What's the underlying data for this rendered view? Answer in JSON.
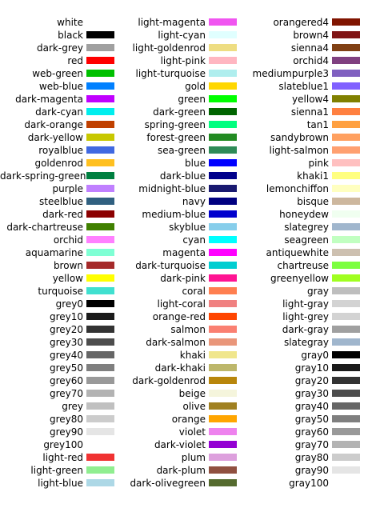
{
  "columns": [
    {
      "items": [
        {
          "name": "white",
          "color": "#ffffff"
        },
        {
          "name": "black",
          "color": "#000000"
        },
        {
          "name": "dark-grey",
          "color": "#a0a0a0"
        },
        {
          "name": "red",
          "color": "#ff0000"
        },
        {
          "name": "web-green",
          "color": "#00c000"
        },
        {
          "name": "web-blue",
          "color": "#0080ff"
        },
        {
          "name": "dark-magenta",
          "color": "#c000ff"
        },
        {
          "name": "dark-cyan",
          "color": "#00eeee"
        },
        {
          "name": "dark-orange",
          "color": "#c04000"
        },
        {
          "name": "dark-yellow",
          "color": "#c8c800"
        },
        {
          "name": "royalblue",
          "color": "#4169e1"
        },
        {
          "name": "goldenrod",
          "color": "#ffc020"
        },
        {
          "name": "dark-spring-green",
          "color": "#008040"
        },
        {
          "name": "purple",
          "color": "#c080ff"
        },
        {
          "name": "steelblue",
          "color": "#306080"
        },
        {
          "name": "dark-red",
          "color": "#8b0000"
        },
        {
          "name": "dark-chartreuse",
          "color": "#408000"
        },
        {
          "name": "orchid",
          "color": "#ff80ff"
        },
        {
          "name": "aquamarine",
          "color": "#7fffd4"
        },
        {
          "name": "brown",
          "color": "#a52a2a"
        },
        {
          "name": "yellow",
          "color": "#ffff00"
        },
        {
          "name": "turquoise",
          "color": "#40e0d0"
        },
        {
          "name": "grey0",
          "color": "#000000"
        },
        {
          "name": "grey10",
          "color": "#1a1a1a"
        },
        {
          "name": "grey20",
          "color": "#333333"
        },
        {
          "name": "grey30",
          "color": "#4d4d4d"
        },
        {
          "name": "grey40",
          "color": "#666666"
        },
        {
          "name": "grey50",
          "color": "#7f7f7f"
        },
        {
          "name": "grey60",
          "color": "#999999"
        },
        {
          "name": "grey70",
          "color": "#b3b3b3"
        },
        {
          "name": "grey",
          "color": "#c0c0c0"
        },
        {
          "name": "grey80",
          "color": "#cccccc"
        },
        {
          "name": "grey90",
          "color": "#e5e5e5"
        },
        {
          "name": "grey100",
          "color": "#ffffff"
        },
        {
          "name": "light-red",
          "color": "#f03232"
        },
        {
          "name": "light-green",
          "color": "#90ee90"
        },
        {
          "name": "light-blue",
          "color": "#add8e6"
        }
      ]
    },
    {
      "items": [
        {
          "name": "light-magenta",
          "color": "#f055f0"
        },
        {
          "name": "light-cyan",
          "color": "#e0ffff"
        },
        {
          "name": "light-goldenrod",
          "color": "#eedd82"
        },
        {
          "name": "light-pink",
          "color": "#ffb6c1"
        },
        {
          "name": "light-turquoise",
          "color": "#afeeee"
        },
        {
          "name": "gold",
          "color": "#ffd700"
        },
        {
          "name": "green",
          "color": "#00ff00"
        },
        {
          "name": "dark-green",
          "color": "#006400"
        },
        {
          "name": "spring-green",
          "color": "#00ff7f"
        },
        {
          "name": "forest-green",
          "color": "#228b22"
        },
        {
          "name": "sea-green",
          "color": "#2e8b57"
        },
        {
          "name": "blue",
          "color": "#0000ff"
        },
        {
          "name": "dark-blue",
          "color": "#00008b"
        },
        {
          "name": "midnight-blue",
          "color": "#191970"
        },
        {
          "name": "navy",
          "color": "#000080"
        },
        {
          "name": "medium-blue",
          "color": "#0000cd"
        },
        {
          "name": "skyblue",
          "color": "#87ceeb"
        },
        {
          "name": "cyan",
          "color": "#00ffff"
        },
        {
          "name": "magenta",
          "color": "#ff00ff"
        },
        {
          "name": "dark-turquoise",
          "color": "#00ced1"
        },
        {
          "name": "dark-pink",
          "color": "#ff1493"
        },
        {
          "name": "coral",
          "color": "#ff7f50"
        },
        {
          "name": "light-coral",
          "color": "#f08080"
        },
        {
          "name": "orange-red",
          "color": "#ff4500"
        },
        {
          "name": "salmon",
          "color": "#fa8072"
        },
        {
          "name": "dark-salmon",
          "color": "#e9967a"
        },
        {
          "name": "khaki",
          "color": "#f0e68c"
        },
        {
          "name": "dark-khaki",
          "color": "#bdb76b"
        },
        {
          "name": "dark-goldenrod",
          "color": "#b8860b"
        },
        {
          "name": "beige",
          "color": "#f5f5dc"
        },
        {
          "name": "olive",
          "color": "#a08020"
        },
        {
          "name": "orange",
          "color": "#ffa500"
        },
        {
          "name": "violet",
          "color": "#ee82ee"
        },
        {
          "name": "dark-violet",
          "color": "#9400d3"
        },
        {
          "name": "plum",
          "color": "#dda0dd"
        },
        {
          "name": "dark-plum",
          "color": "#905040"
        },
        {
          "name": "dark-olivegreen",
          "color": "#556b2f"
        }
      ]
    },
    {
      "items": [
        {
          "name": "orangered4",
          "color": "#801400"
        },
        {
          "name": "brown4",
          "color": "#801414"
        },
        {
          "name": "sienna4",
          "color": "#804014"
        },
        {
          "name": "orchid4",
          "color": "#804080"
        },
        {
          "name": "mediumpurple3",
          "color": "#8060c0"
        },
        {
          "name": "slateblue1",
          "color": "#8060ff"
        },
        {
          "name": "yellow4",
          "color": "#808000"
        },
        {
          "name": "sienna1",
          "color": "#ff8040"
        },
        {
          "name": "tan1",
          "color": "#ffa040"
        },
        {
          "name": "sandybrown",
          "color": "#ffa060"
        },
        {
          "name": "light-salmon",
          "color": "#ffa070"
        },
        {
          "name": "pink",
          "color": "#ffc0c0"
        },
        {
          "name": "khaki1",
          "color": "#ffff80"
        },
        {
          "name": "lemonchiffon",
          "color": "#ffffc0"
        },
        {
          "name": "bisque",
          "color": "#cdb79e"
        },
        {
          "name": "honeydew",
          "color": "#f0fff0"
        },
        {
          "name": "slategrey",
          "color": "#a0b6cd"
        },
        {
          "name": "seagreen",
          "color": "#c1ffc1"
        },
        {
          "name": "antiquewhite",
          "color": "#cdc0b0"
        },
        {
          "name": "chartreuse",
          "color": "#7cff40"
        },
        {
          "name": "greenyellow",
          "color": "#a0ff20"
        },
        {
          "name": "gray",
          "color": "#bebebe"
        },
        {
          "name": "light-gray",
          "color": "#d3d3d3"
        },
        {
          "name": "light-grey",
          "color": "#d3d3d3"
        },
        {
          "name": "dark-gray",
          "color": "#a0a0a0"
        },
        {
          "name": "slategray",
          "color": "#a0b6cd"
        },
        {
          "name": "gray0",
          "color": "#000000"
        },
        {
          "name": "gray10",
          "color": "#1a1a1a"
        },
        {
          "name": "gray20",
          "color": "#333333"
        },
        {
          "name": "gray30",
          "color": "#4d4d4d"
        },
        {
          "name": "gray40",
          "color": "#666666"
        },
        {
          "name": "gray50",
          "color": "#7f7f7f"
        },
        {
          "name": "gray60",
          "color": "#999999"
        },
        {
          "name": "gray70",
          "color": "#b3b3b3"
        },
        {
          "name": "gray80",
          "color": "#cccccc"
        },
        {
          "name": "gray90",
          "color": "#e5e5e5"
        },
        {
          "name": "gray100",
          "color": "#ffffff"
        }
      ]
    }
  ]
}
